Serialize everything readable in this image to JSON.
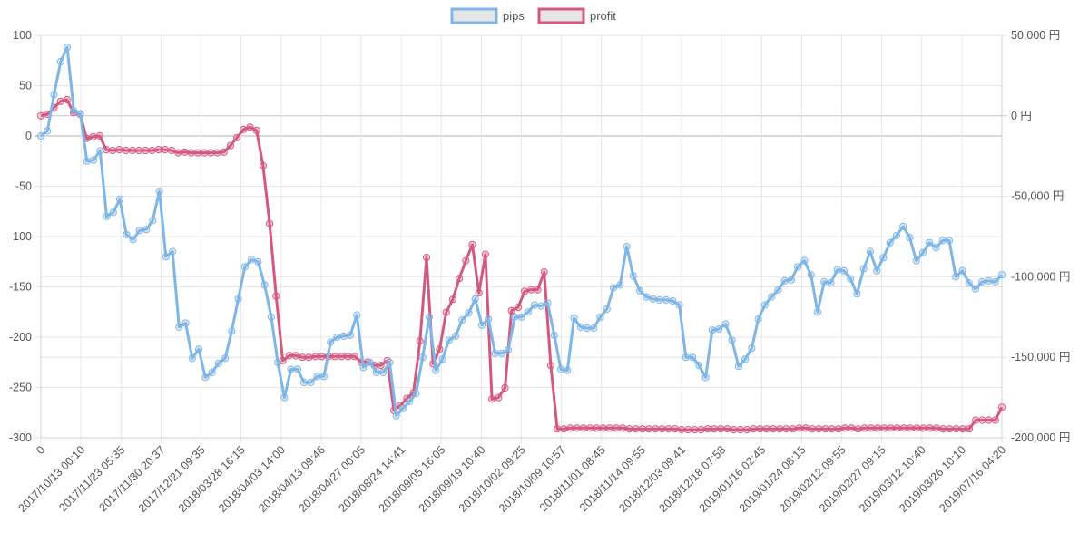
{
  "chart_data": {
    "type": "line",
    "legend": {
      "placement": "top-center",
      "labels": [
        "pips",
        "profit"
      ]
    },
    "grid": true,
    "x_tick_labels": [
      "0",
      "2017/10/13 00:10",
      "2017/11/23 05:35",
      "2017/11/30 20:37",
      "2017/12/21 09:35",
      "2018/03/28 16:15",
      "2018/04/03 14:00",
      "2018/04/13 09:46",
      "2018/04/27 00:05",
      "2018/08/24 14:41",
      "2018/09/05 16:05",
      "2018/09/19 10:40",
      "2018/10/02 09:25",
      "2018/10/09 10:57",
      "2018/11/01 08:45",
      "2018/11/14 09:55",
      "2018/12/03 09:41",
      "2018/12/18 07:58",
      "2019/01/16 02:45",
      "2019/01/24 08:15",
      "2019/02/12 09:55",
      "2019/02/27 09:15",
      "2019/03/12 10:40",
      "2019/03/26 10:10",
      "2019/07/16 04:20"
    ],
    "y_left": {
      "ylim": [
        -300,
        100
      ],
      "ticks": [
        100,
        50,
        0,
        -50,
        -100,
        -150,
        -200,
        -250,
        -300
      ],
      "tick_labels": [
        "100",
        "50",
        "0",
        "-50",
        "-100",
        "-150",
        "-200",
        "-250",
        "-300"
      ]
    },
    "y_right": {
      "ylim": [
        -200000,
        50000
      ],
      "ticks": [
        50000,
        0,
        -50000,
        -100000,
        -150000,
        -200000
      ],
      "tick_labels": [
        "50,000 円",
        "0 円",
        "-50,000 円",
        "-100,000 円",
        "-150,000 円",
        "-200,000 円"
      ]
    },
    "series": [
      {
        "name": "pips",
        "axis": "left",
        "color": "#7fb6e8",
        "values": [
          0,
          5,
          41,
          74,
          88,
          25,
          22,
          -25,
          -24,
          -15,
          -80,
          -76,
          -63,
          -98,
          -103,
          -94,
          -93,
          -84,
          -55,
          -120,
          -115,
          -190,
          -186,
          -221,
          -212,
          -240,
          -235,
          -226,
          -221,
          -194,
          -162,
          -130,
          -123,
          -125,
          -148,
          -180,
          -225,
          -260,
          -232,
          -232,
          -245,
          -245,
          -239,
          -239,
          -205,
          -200,
          -199,
          -198,
          -178,
          -230,
          -225,
          -235,
          -235,
          -225,
          -278,
          -271,
          -264,
          -256,
          -220,
          -180,
          -233,
          -222,
          -203,
          -199,
          -183,
          -176,
          -162,
          -188,
          -182,
          -216,
          -216,
          -213,
          -180,
          -180,
          -175,
          -168,
          -169,
          -166,
          -198,
          -232,
          -233,
          -181,
          -190,
          -191,
          -191,
          -180,
          -172,
          -151,
          -148,
          -110,
          -139,
          -154,
          -160,
          -162,
          -163,
          -163,
          -164,
          -168,
          -220,
          -220,
          -228,
          -240,
          -193,
          -192,
          -187,
          -203,
          -229,
          -222,
          -211,
          -182,
          -168,
          -160,
          -153,
          -144,
          -143,
          -130,
          -124,
          -138,
          -175,
          -145,
          -146,
          -133,
          -134,
          -142,
          -157,
          -132,
          -115,
          -134,
          -121,
          -106,
          -99,
          -90,
          -101,
          -124,
          -116,
          -106,
          -111,
          -104,
          -104,
          -140,
          -134,
          -146,
          -152,
          -145,
          -144,
          -145,
          -138
        ]
      },
      {
        "name": "profit",
        "axis": "right",
        "color": "#d4597f",
        "values": [
          0,
          1000,
          5000,
          9000,
          10000,
          2000,
          1000,
          -14000,
          -13000,
          -12500,
          -21000,
          -21500,
          -21000,
          -21500,
          -21500,
          -21500,
          -21500,
          -21500,
          -21000,
          -21000,
          -21500,
          -23000,
          -22500,
          -23000,
          -23000,
          -23000,
          -23000,
          -23000,
          -22500,
          -18500,
          -13500,
          -8500,
          -7000,
          -9000,
          -31000,
          -67000,
          -112000,
          -152000,
          -149000,
          -149000,
          -150000,
          -150000,
          -149500,
          -149500,
          -149500,
          -149500,
          -149500,
          -149500,
          -149500,
          -153000,
          -153000,
          -155000,
          -155000,
          -152000,
          -183000,
          -180000,
          -175500,
          -172000,
          -140000,
          -88000,
          -154000,
          -145000,
          -122000,
          -114000,
          -101000,
          -90000,
          -80000,
          -110000,
          -86000,
          -176000,
          -175000,
          -169000,
          -121000,
          -119000,
          -109000,
          -108000,
          -108000,
          -97000,
          -155000,
          -194500,
          -194500,
          -194000,
          -194000,
          -194000,
          -194000,
          -194000,
          -194000,
          -194000,
          -194000,
          -194000,
          -194500,
          -194500,
          -194500,
          -194500,
          -194500,
          -194500,
          -194500,
          -194500,
          -195000,
          -195000,
          -195000,
          -195000,
          -194500,
          -194500,
          -194500,
          -194500,
          -195000,
          -195000,
          -195000,
          -194500,
          -194500,
          -194500,
          -194500,
          -194500,
          -194500,
          -194500,
          -194000,
          -194000,
          -194500,
          -194500,
          -194500,
          -194500,
          -194500,
          -194000,
          -194000,
          -194500,
          -194000,
          -194000,
          -194000,
          -194000,
          -194000,
          -194000,
          -194000,
          -194000,
          -194000,
          -194000,
          -194000,
          -194000,
          -194500,
          -194500,
          -194500,
          -194500,
          -194500,
          -189000,
          -189000,
          -189000,
          -189000,
          -181000
        ]
      }
    ]
  }
}
